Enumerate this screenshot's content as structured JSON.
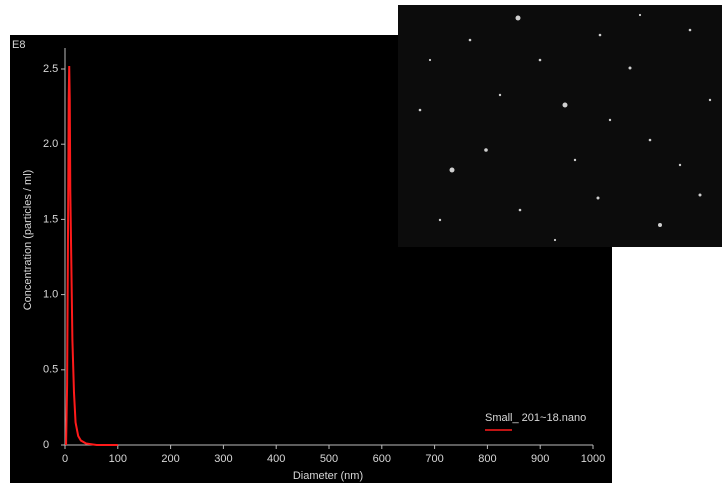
{
  "chart_data": {
    "type": "line",
    "y_unit": "E8",
    "xlabel": "Diameter (nm)",
    "ylabel": "Concentration (particles / ml)",
    "xlim": [
      0,
      1000
    ],
    "xticks": [
      0,
      100,
      200,
      300,
      400,
      500,
      600,
      700,
      800,
      900,
      1000
    ],
    "ylim": [
      0,
      2.5
    ],
    "yticks": [
      0,
      0.5,
      {
        "value": 1,
        "label": "1.0"
      },
      1.5,
      {
        "value": 2,
        "label": "2.0"
      },
      2.5
    ],
    "series": [
      {
        "name": "Small_ 201~18.nano",
        "color": "#ff1a1a",
        "x": [
          2,
          4,
          6,
          7,
          8,
          9,
          10,
          12,
          14,
          17,
          20,
          25,
          30,
          40,
          60,
          100
        ],
        "values": [
          0,
          0.4,
          1.6,
          2.3,
          2.52,
          2.3,
          1.7,
          1.2,
          0.7,
          0.35,
          0.15,
          0.06,
          0.03,
          0.01,
          0,
          0
        ]
      }
    ]
  }
}
